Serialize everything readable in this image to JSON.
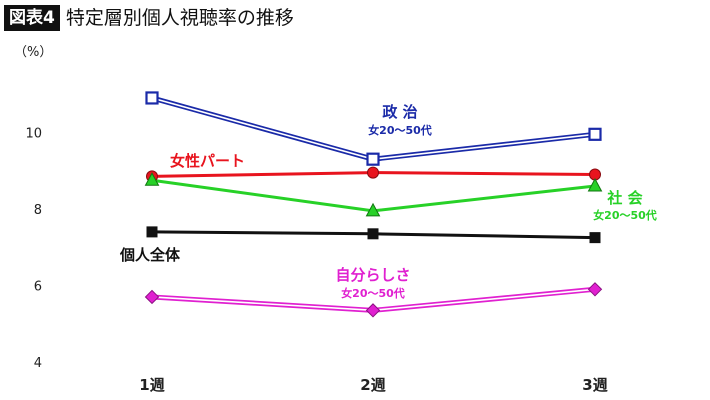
{
  "header": {
    "badge": "図表4",
    "title": "特定層別個人視聴率の推移"
  },
  "chart_data": {
    "type": "line",
    "title": "特定層別個人視聴率の推移",
    "ylabel": "（%）",
    "xlabel": "",
    "categories": [
      "1週",
      "2週",
      "3週"
    ],
    "ylim": [
      4,
      11.5
    ],
    "yticks": [
      4,
      6,
      8,
      10
    ],
    "grid": false,
    "series": [
      {
        "name": "政 治",
        "sub": "女20〜50代",
        "values": [
          10.9,
          9.3,
          9.95
        ],
        "color": "#1a2aa8",
        "marker": "square-open",
        "line": "double"
      },
      {
        "name": "女性パート",
        "sub": "",
        "values": [
          8.85,
          8.95,
          8.9
        ],
        "color": "#e8141e",
        "marker": "circle",
        "line": "solid"
      },
      {
        "name": "社 会",
        "sub": "女20〜50代",
        "values": [
          8.75,
          7.95,
          8.6
        ],
        "color": "#27d127",
        "marker": "triangle",
        "line": "solid"
      },
      {
        "name": "個人全体",
        "sub": "",
        "values": [
          7.4,
          7.35,
          7.25
        ],
        "color": "#111111",
        "marker": "square",
        "line": "solid"
      },
      {
        "name": "自分らしさ",
        "sub": "女20〜50代",
        "values": [
          5.7,
          5.35,
          5.9
        ],
        "color": "#e020d0",
        "marker": "diamond",
        "line": "double"
      }
    ]
  }
}
